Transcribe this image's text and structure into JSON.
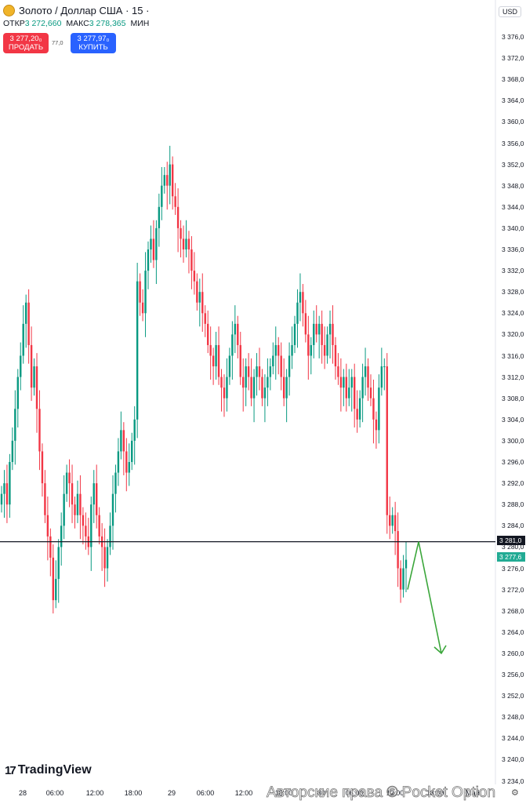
{
  "header": {
    "symbol_title": "Золото / Доллар США · 15 ·",
    "open_label": "ОТКР",
    "open_value": "3 272,660",
    "high_label": "МАКС",
    "high_value": "3 278,365",
    "low_label": "МИН"
  },
  "trade": {
    "sell_price": "3 277,20₀",
    "sell_label": "ПРОДАТЬ",
    "spread": "77,0",
    "buy_price": "3 277,97₀",
    "buy_label": "КУПИТЬ"
  },
  "currency": "USD",
  "price_axis": {
    "labels": [
      "3 376,0",
      "3 372,0",
      "3 368,0",
      "3 364,0",
      "3 360,0",
      "3 356,0",
      "3 352,0",
      "3 348,0",
      "3 344,0",
      "3 340,0",
      "3 336,0",
      "3 332,0",
      "3 328,0",
      "3 324,0",
      "3 320,0",
      "3 316,0",
      "3 312,0",
      "3 308,0",
      "3 304,0",
      "3 300,0",
      "3 296,0",
      "3 292,0",
      "3 288,0",
      "3 284,0",
      "3 280,0",
      "3 276,0",
      "3 272,0",
      "3 268,0",
      "3 264,0",
      "3 260,0",
      "3 256,0",
      "3 252,0",
      "3 248,0",
      "3 244,0",
      "3 240,0",
      "3 234,0"
    ],
    "line_price_tag": "3 281,0",
    "last_price_tag": "3 277,6"
  },
  "time_axis": {
    "labels": [
      "28",
      "06:00",
      "12:00",
      "18:00",
      "29",
      "06:00",
      "12:00",
      "18:00",
      "30",
      "06:00",
      "12:00",
      "18:00",
      "Май"
    ]
  },
  "chart_data": {
    "type": "candlestick",
    "y_range": [
      3234,
      3378
    ],
    "horizontal_line": 3281,
    "last_price": 3277.6,
    "up_color": "#089981",
    "down_color": "#f23645",
    "closes": [
      3290,
      3292,
      3288,
      3296,
      3300,
      3306,
      3312,
      3316,
      3322,
      3326,
      3318,
      3310,
      3314,
      3306,
      3298,
      3292,
      3286,
      3282,
      3278,
      3270,
      3274,
      3280,
      3284,
      3290,
      3294,
      3292,
      3288,
      3286,
      3290,
      3286,
      3284,
      3282,
      3280,
      3288,
      3292,
      3286,
      3282,
      3280,
      3276,
      3280,
      3284,
      3290,
      3294,
      3298,
      3302,
      3298,
      3294,
      3296,
      3300,
      3304,
      3330,
      3326,
      3324,
      3332,
      3336,
      3338,
      3334,
      3340,
      3344,
      3348,
      3350,
      3348,
      3352,
      3346,
      3344,
      3340,
      3338,
      3336,
      3338,
      3336,
      3332,
      3330,
      3326,
      3328,
      3324,
      3322,
      3318,
      3316,
      3314,
      3318,
      3312,
      3310,
      3308,
      3312,
      3316,
      3320,
      3322,
      3318,
      3312,
      3310,
      3314,
      3312,
      3308,
      3312,
      3314,
      3312,
      3308,
      3310,
      3312,
      3314,
      3316,
      3318,
      3316,
      3312,
      3308,
      3312,
      3316,
      3318,
      3322,
      3326,
      3328,
      3324,
      3320,
      3316,
      3318,
      3322,
      3320,
      3322,
      3318,
      3316,
      3320,
      3322,
      3318,
      3314,
      3312,
      3310,
      3312,
      3308,
      3310,
      3312,
      3306,
      3304,
      3308,
      3312,
      3314,
      3310,
      3308,
      3304,
      3302,
      3310,
      3314,
      3314,
      3286,
      3284,
      3286,
      3283,
      3276,
      3272,
      3276,
      3277.6
    ],
    "forecast_path": [
      [
        3272,
        0
      ],
      [
        3281,
        1
      ],
      [
        3260,
        2
      ]
    ]
  },
  "branding": {
    "logo_text": "TradingView",
    "watermark": "Авторские права © Pocket Option"
  }
}
